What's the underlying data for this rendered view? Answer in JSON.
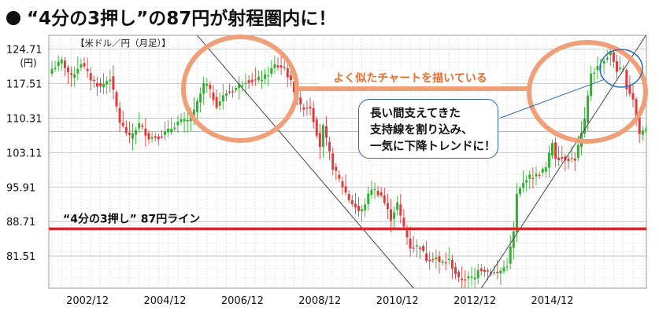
{
  "title": "“4分の3押し”の87円が射程圏内に！",
  "unit_label": "【米ドル／円（月足）】",
  "callout": {
    "lines": [
      "長い間支えてきた",
      "支持線を割り込み、",
      "一気に下降トレンドに！"
    ]
  },
  "annotation_similar": "よく似たチャートを描いている",
  "colors": {
    "up": "#2fb12f",
    "down": "#e03a3a",
    "support": "#d8262d",
    "accent": "#f0a078",
    "callout_border": "#2a6cb3"
  },
  "chart_data": {
    "type": "candlestick",
    "title": "“4分の3押し”の87円が射程圏内に！",
    "unit": "米ドル／円（月足）",
    "y_unit_label": "(円)",
    "yticks": [
      81.51,
      88.71,
      95.91,
      103.11,
      110.31,
      117.51,
      124.71
    ],
    "xticks": [
      "2002/12",
      "2004/12",
      "2006/12",
      "2008/12",
      "2010/12",
      "2012/12",
      "2014/12"
    ],
    "ylim": [
      74.8,
      127.6
    ],
    "grid": true,
    "support_line": {
      "value": 87.2,
      "label": "“4分の3押し” 87円ライン"
    },
    "closes_monthly_from_2002_01": [
      [
        0,
        120.6
      ],
      [
        3,
        122.2
      ],
      [
        6,
        118.8
      ],
      [
        9,
        121.9
      ],
      [
        12,
        118.5
      ],
      [
        15,
        116.8
      ],
      [
        18,
        118.8
      ],
      [
        21,
        109.5
      ],
      [
        24,
        106.2
      ],
      [
        27,
        109.0
      ],
      [
        30,
        106.3
      ],
      [
        33,
        106.5
      ],
      [
        36,
        107.6
      ],
      [
        39,
        109.5
      ],
      [
        42,
        109.7
      ],
      [
        44,
        111.6
      ],
      [
        47,
        117.3
      ],
      [
        48,
        117.2
      ],
      [
        51,
        113.1
      ],
      [
        54,
        115.6
      ],
      [
        57,
        116.6
      ],
      [
        60,
        118.2
      ],
      [
        63,
        118.1
      ],
      [
        66,
        118.9
      ],
      [
        69,
        121.3
      ],
      [
        72,
        120.8
      ],
      [
        75,
        116.2
      ],
      [
        77,
        112.6
      ],
      [
        80,
        112.7
      ],
      [
        83,
        104.5
      ],
      [
        84,
        108.4
      ],
      [
        87,
        100.1
      ],
      [
        89,
        97.4
      ],
      [
        92,
        93.4
      ],
      [
        95,
        90.9
      ],
      [
        96,
        91.0
      ],
      [
        99,
        95.7
      ],
      [
        102,
        94.2
      ],
      [
        105,
        89.4
      ],
      [
        107,
        92.5
      ],
      [
        108,
        89.6
      ],
      [
        111,
        83.4
      ],
      [
        114,
        83.5
      ],
      [
        116,
        80.9
      ],
      [
        119,
        81.2
      ],
      [
        120,
        80.0
      ],
      [
        123,
        80.6
      ],
      [
        126,
        76.6
      ],
      [
        129,
        76.9
      ],
      [
        131,
        76.9
      ],
      [
        132,
        79.0
      ],
      [
        135,
        78.4
      ],
      [
        138,
        77.8
      ],
      [
        141,
        79.8
      ],
      [
        143,
        86.5
      ],
      [
        144,
        94.2
      ],
      [
        147,
        97.9
      ],
      [
        150,
        98.3
      ],
      [
        153,
        99.9
      ],
      [
        155,
        105.3
      ],
      [
        156,
        102.2
      ],
      [
        159,
        101.9
      ],
      [
        162,
        101.8
      ],
      [
        165,
        109.6
      ],
      [
        167,
        119.8
      ],
      [
        168,
        120.2
      ],
      [
        171,
        122.4
      ],
      [
        173,
        124.0
      ],
      [
        175,
        120.4
      ],
      [
        177,
        120.2
      ],
      [
        178,
        116.9
      ],
      [
        180,
        114.4
      ],
      [
        182,
        107.0
      ],
      [
        184,
        108.3
      ],
      [
        185,
        110.0
      ]
    ],
    "annotations": [
      "よく似たチャートを描いている",
      "長い間支えてきた 支持線を割り込み、 一気に下降トレンドに！"
    ]
  }
}
